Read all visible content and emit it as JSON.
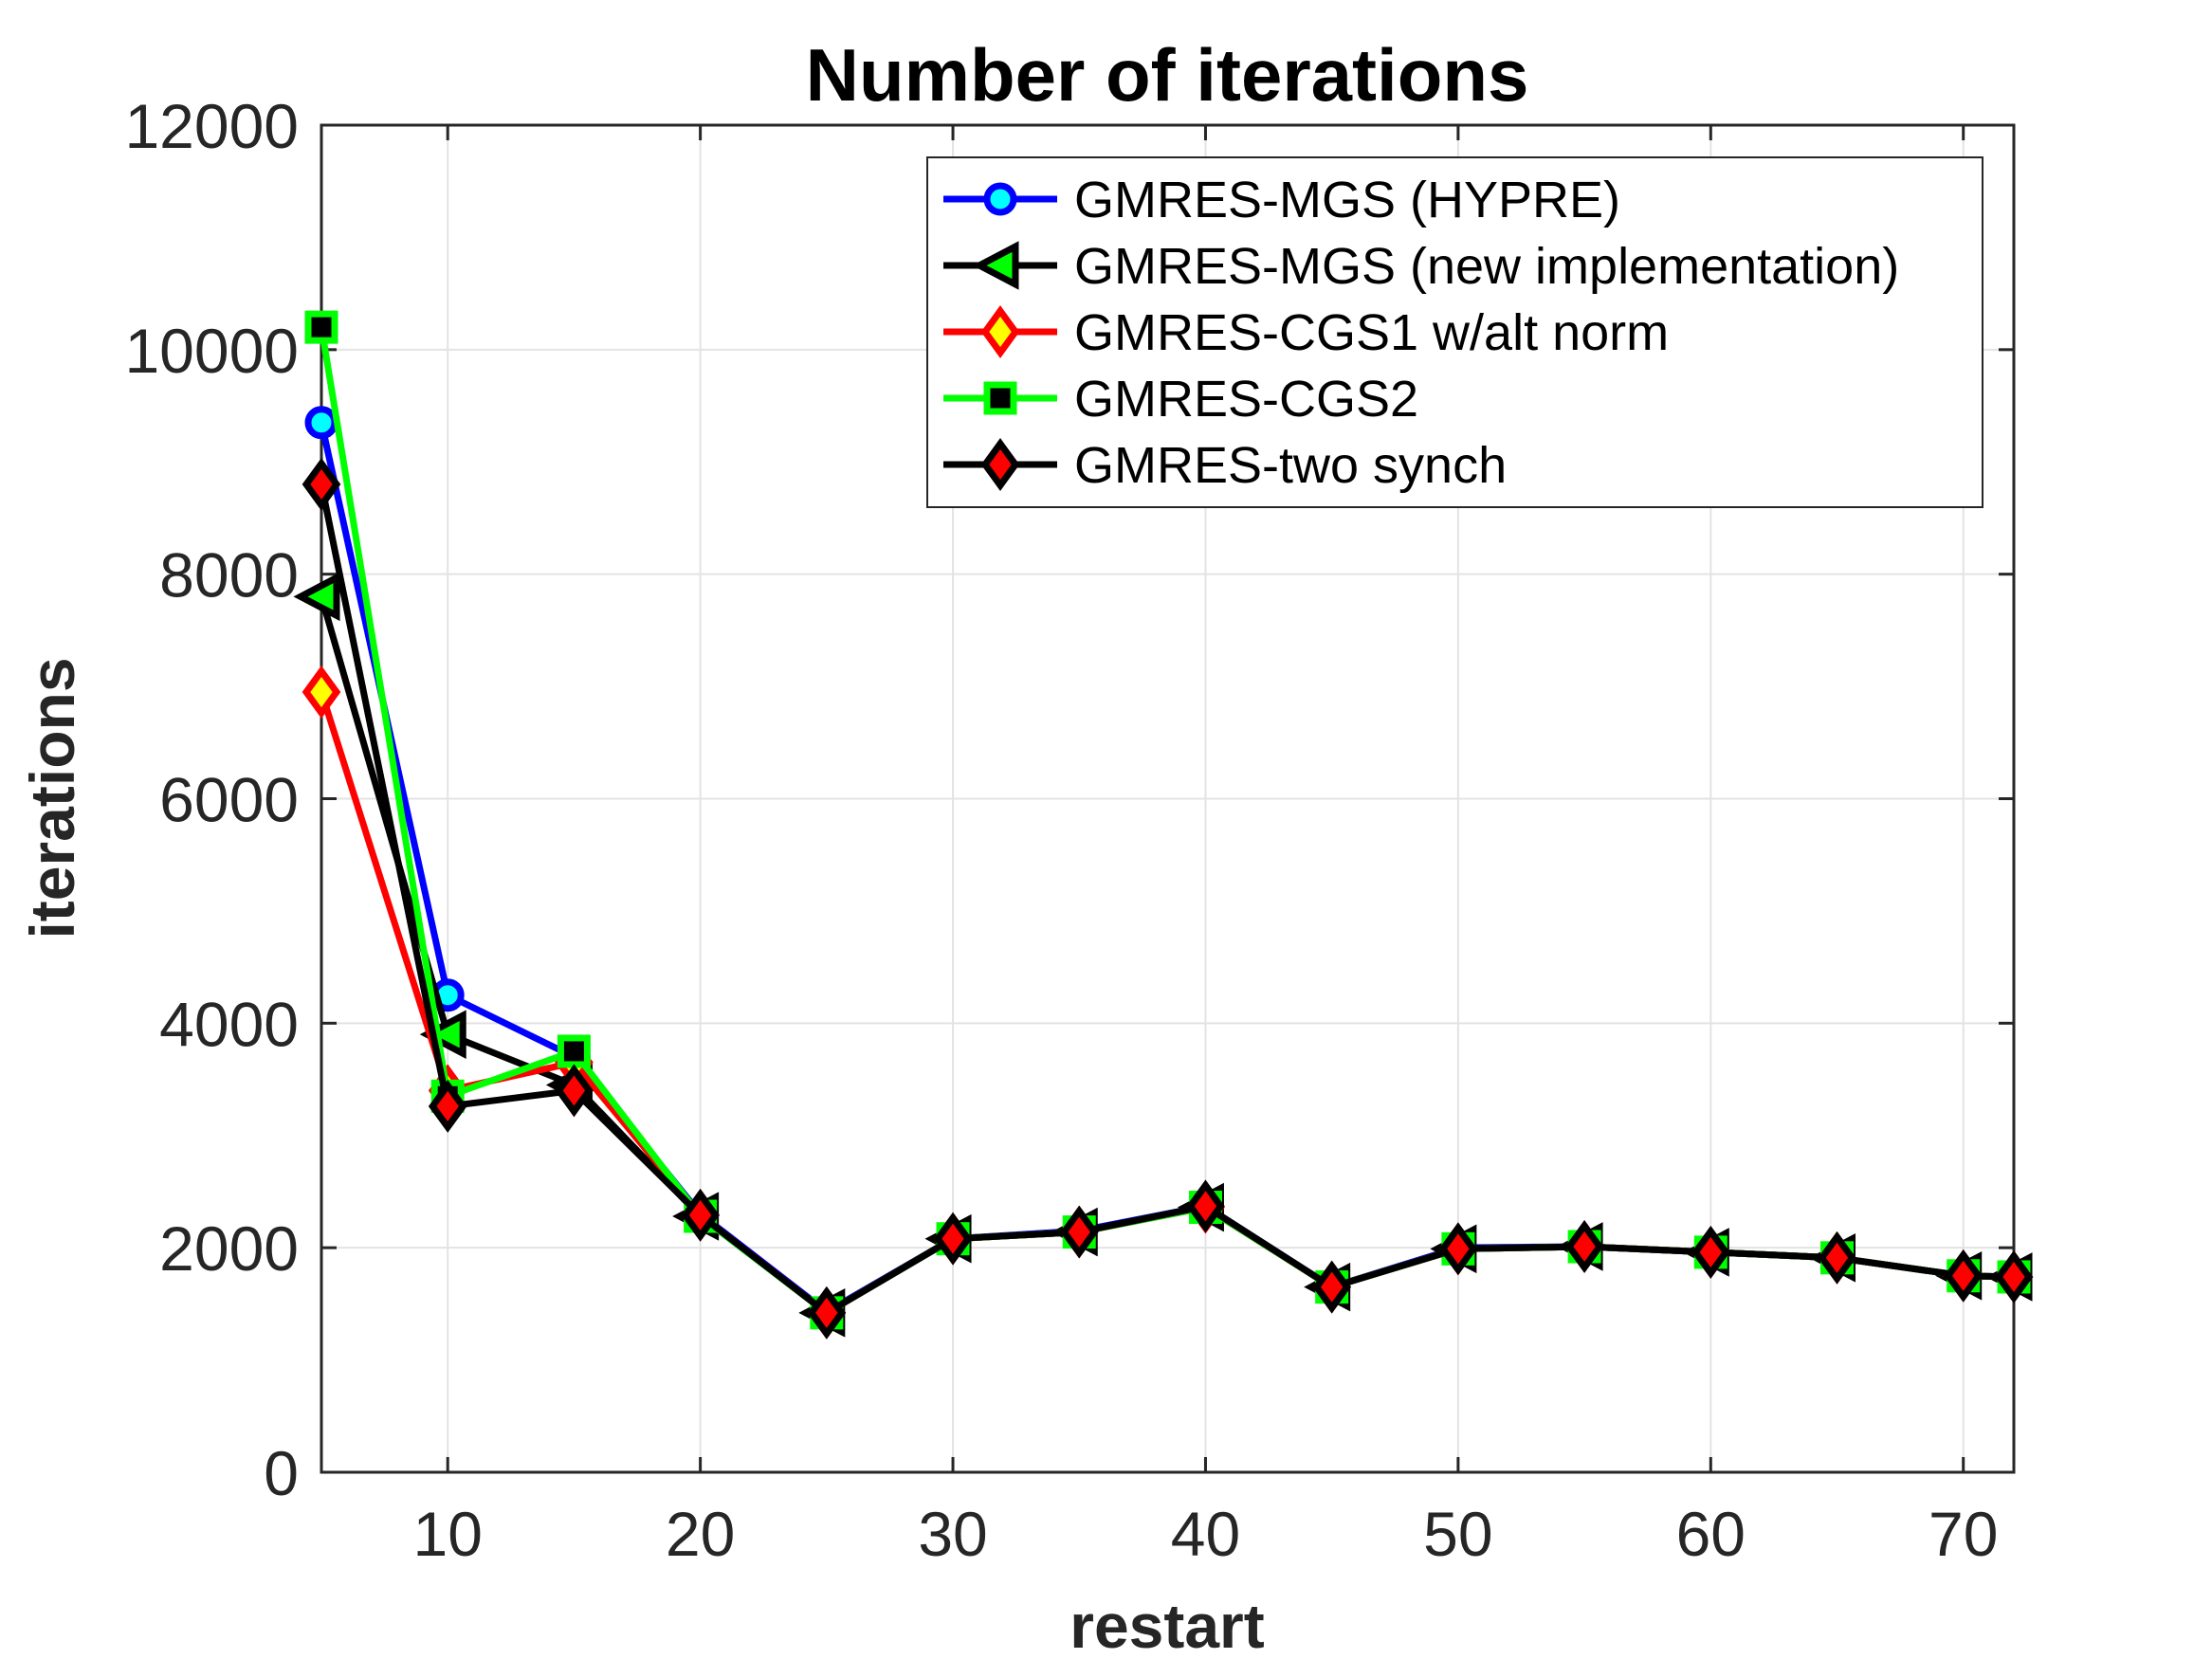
{
  "chart_data": {
    "type": "line",
    "title": "Number of iterations",
    "xlabel": "restart",
    "ylabel": "iterations",
    "xlim": [
      5,
      72
    ],
    "ylim": [
      0,
      12000
    ],
    "xticks": [
      10,
      20,
      30,
      40,
      50,
      60,
      70
    ],
    "yticks": [
      0,
      2000,
      4000,
      6000,
      8000,
      10000,
      12000
    ],
    "grid": true,
    "legend_position": "top-right",
    "x": [
      5,
      10,
      15,
      20,
      25,
      30,
      35,
      40,
      45,
      50,
      55,
      60,
      65,
      70,
      72
    ],
    "series": [
      {
        "name": "GMRES-MGS (HYPRE)",
        "line_color": "#0000ff",
        "marker": "circle",
        "marker_face": "#00ffff",
        "marker_edge": "#0000ff",
        "values": [
          9350,
          4250,
          3700,
          2300,
          1430,
          2080,
          2150,
          2370,
          1650,
          2000,
          2010,
          1960,
          1910,
          1750,
          1740
        ]
      },
      {
        "name": "GMRES-MGS (new implementation)",
        "line_color": "#000000",
        "marker": "triangle-left",
        "marker_face": "#00ff00",
        "marker_edge": "#000000",
        "values": [
          7800,
          3900,
          3450,
          2280,
          1420,
          2080,
          2140,
          2360,
          1650,
          1990,
          2010,
          1960,
          1910,
          1750,
          1740
        ]
      },
      {
        "name": "GMRES-CGS1 w/alt norm",
        "line_color": "#ff0000",
        "marker": "diamond",
        "marker_face": "#ffff00",
        "marker_edge": "#ff0000",
        "values": [
          6950,
          3400,
          3650,
          2290,
          1420,
          2080,
          2140,
          2360,
          1650,
          1990,
          2010,
          1960,
          1910,
          1750,
          1740
        ]
      },
      {
        "name": "GMRES-CGS2",
        "line_color": "#00ff00",
        "marker": "square",
        "marker_face": "#000000",
        "marker_edge": "#00ff00",
        "values": [
          10200,
          3350,
          3750,
          2280,
          1420,
          2080,
          2140,
          2360,
          1650,
          1990,
          2010,
          1960,
          1910,
          1750,
          1740
        ]
      },
      {
        "name": "GMRES-two synch",
        "line_color": "#000000",
        "marker": "diamond",
        "marker_face": "#ff0000",
        "marker_edge": "#000000",
        "values": [
          8800,
          3260,
          3400,
          2290,
          1420,
          2080,
          2140,
          2370,
          1650,
          1990,
          2010,
          1960,
          1910,
          1750,
          1740
        ]
      }
    ]
  }
}
